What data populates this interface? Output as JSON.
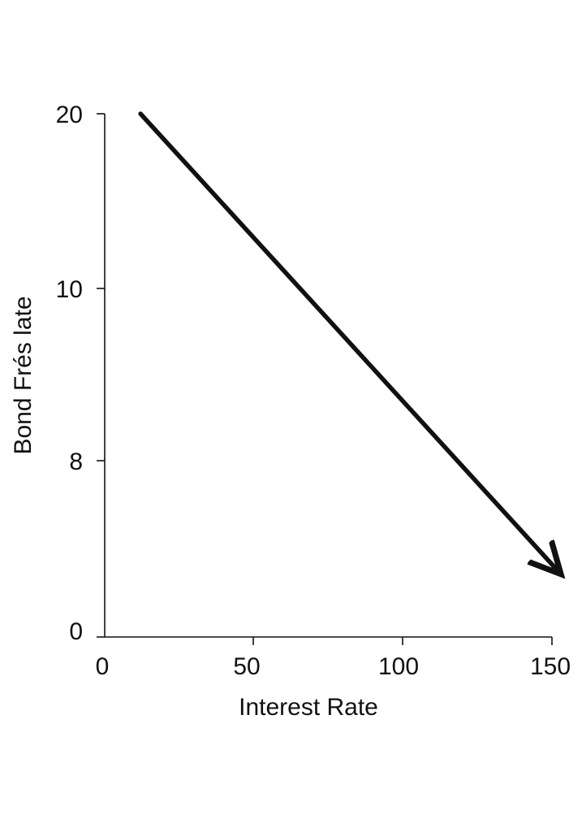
{
  "chart_data": {
    "type": "line",
    "xlabel": "Interest Rate",
    "ylabel": "Bond Frés late",
    "x_ticks": [
      "0",
      "50",
      "100",
      "150"
    ],
    "y_ticks": [
      "0",
      "8",
      "10",
      "20"
    ],
    "series": [
      {
        "x": [
          12,
          152
        ],
        "y": [
          20,
          3
        ],
        "style": "arrow",
        "color": "#111111"
      }
    ],
    "grid": false,
    "legend": "none"
  }
}
